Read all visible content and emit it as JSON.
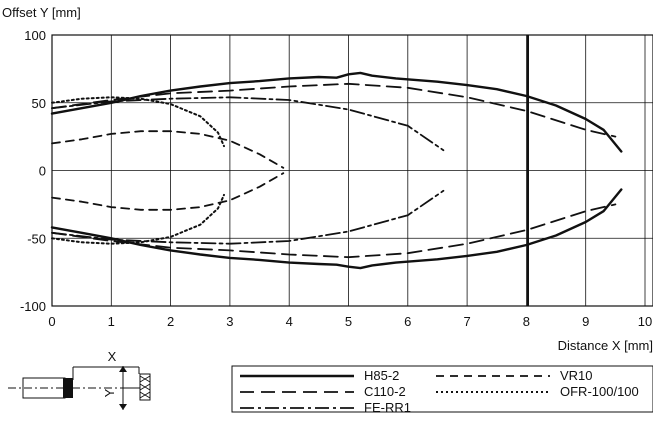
{
  "chart_data": {
    "type": "line",
    "ylabel": "Offset Y [mm]",
    "xlabel": "Distance X [mm]",
    "xlim": [
      0,
      10
    ],
    "ylim": [
      -100,
      100
    ],
    "x_ticks": [
      "0",
      "1",
      "2",
      "3",
      "4",
      "5",
      "6",
      "7",
      "8",
      "9",
      "10"
    ],
    "y_ticks": [
      "100",
      "50",
      "0",
      "-50",
      "-100"
    ],
    "grid": true,
    "legend_position": "bottom-right",
    "series": [
      {
        "name": "H85-2",
        "style": "solid-bold",
        "upper": [
          [
            0,
            42
          ],
          [
            0.5,
            46
          ],
          [
            1,
            50
          ],
          [
            1.5,
            55
          ],
          [
            2,
            59
          ],
          [
            2.5,
            62
          ],
          [
            3,
            64.5
          ],
          [
            3.5,
            66
          ],
          [
            4,
            68
          ],
          [
            4.5,
            69
          ],
          [
            4.8,
            68.5
          ],
          [
            5,
            71
          ],
          [
            5.2,
            72
          ],
          [
            5.4,
            70
          ],
          [
            5.8,
            68
          ],
          [
            6.5,
            65.5
          ],
          [
            7,
            63
          ],
          [
            7.5,
            60
          ],
          [
            8,
            55
          ],
          [
            8.5,
            48
          ],
          [
            9,
            38
          ],
          [
            9.3,
            30
          ],
          [
            9.6,
            14
          ]
        ],
        "lower": [
          [
            0,
            -42
          ],
          [
            0.5,
            -46
          ],
          [
            1,
            -50
          ],
          [
            1.5,
            -55
          ],
          [
            2,
            -59
          ],
          [
            2.5,
            -62
          ],
          [
            3,
            -64.5
          ],
          [
            3.5,
            -66
          ],
          [
            4,
            -68
          ],
          [
            4.5,
            -69
          ],
          [
            4.8,
            -69.5
          ],
          [
            5,
            -71
          ],
          [
            5.2,
            -72
          ],
          [
            5.4,
            -70
          ],
          [
            5.8,
            -68
          ],
          [
            6.5,
            -65.5
          ],
          [
            7,
            -63
          ],
          [
            7.5,
            -60
          ],
          [
            8,
            -55
          ],
          [
            8.5,
            -48
          ],
          [
            9,
            -38
          ],
          [
            9.3,
            -30
          ],
          [
            9.6,
            -14
          ]
        ]
      },
      {
        "name": "C110-2",
        "style": "long-dash",
        "upper": [
          [
            0,
            46
          ],
          [
            1,
            52
          ],
          [
            2,
            57
          ],
          [
            3,
            59
          ],
          [
            4,
            62
          ],
          [
            5,
            64
          ],
          [
            6,
            61
          ],
          [
            7,
            54
          ],
          [
            8,
            44
          ],
          [
            9,
            30
          ],
          [
            9.5,
            25
          ]
        ],
        "lower": [
          [
            0,
            -46
          ],
          [
            1,
            -52
          ],
          [
            2,
            -57
          ],
          [
            3,
            -59
          ],
          [
            4,
            -62
          ],
          [
            5,
            -64
          ],
          [
            6,
            -61
          ],
          [
            7,
            -54
          ],
          [
            8,
            -44
          ],
          [
            9,
            -30
          ],
          [
            9.5,
            -25
          ]
        ]
      },
      {
        "name": "FE-RR1",
        "style": "dash-dot",
        "upper": [
          [
            0,
            46
          ],
          [
            1,
            51
          ],
          [
            2,
            53
          ],
          [
            3,
            54
          ],
          [
            4,
            52
          ],
          [
            5,
            45
          ],
          [
            6,
            33
          ],
          [
            6.6,
            15
          ]
        ],
        "lower": [
          [
            0,
            -46
          ],
          [
            1,
            -51
          ],
          [
            2,
            -53
          ],
          [
            3,
            -54
          ],
          [
            4,
            -52
          ],
          [
            5,
            -45
          ],
          [
            6,
            -33
          ],
          [
            6.6,
            -15
          ]
        ]
      },
      {
        "name": "VR10",
        "style": "dash",
        "upper": [
          [
            0,
            20
          ],
          [
            0.5,
            23
          ],
          [
            1,
            27
          ],
          [
            1.5,
            29
          ],
          [
            2,
            29
          ],
          [
            2.5,
            27
          ],
          [
            3,
            22
          ],
          [
            3.5,
            12
          ],
          [
            3.9,
            2
          ]
        ],
        "lower": [
          [
            0,
            -20
          ],
          [
            0.5,
            -23
          ],
          [
            1,
            -27
          ],
          [
            1.5,
            -29
          ],
          [
            2,
            -29
          ],
          [
            2.5,
            -27
          ],
          [
            3,
            -22
          ],
          [
            3.5,
            -12
          ],
          [
            3.9,
            -2
          ]
        ]
      },
      {
        "name": "OFR-100/100",
        "style": "dotted",
        "upper": [
          [
            0,
            50
          ],
          [
            0.5,
            53
          ],
          [
            1,
            54
          ],
          [
            1.5,
            53
          ],
          [
            2,
            49
          ],
          [
            2.5,
            40
          ],
          [
            2.8,
            28
          ],
          [
            2.9,
            18
          ]
        ],
        "lower": [
          [
            0,
            -50
          ],
          [
            0.5,
            -53
          ],
          [
            1,
            -54
          ],
          [
            1.5,
            -53
          ],
          [
            2,
            -49
          ],
          [
            2.5,
            -40
          ],
          [
            2.8,
            -28
          ],
          [
            2.9,
            -18
          ]
        ]
      }
    ]
  },
  "schematic": {
    "x_label": "X",
    "y_label": "Y"
  }
}
